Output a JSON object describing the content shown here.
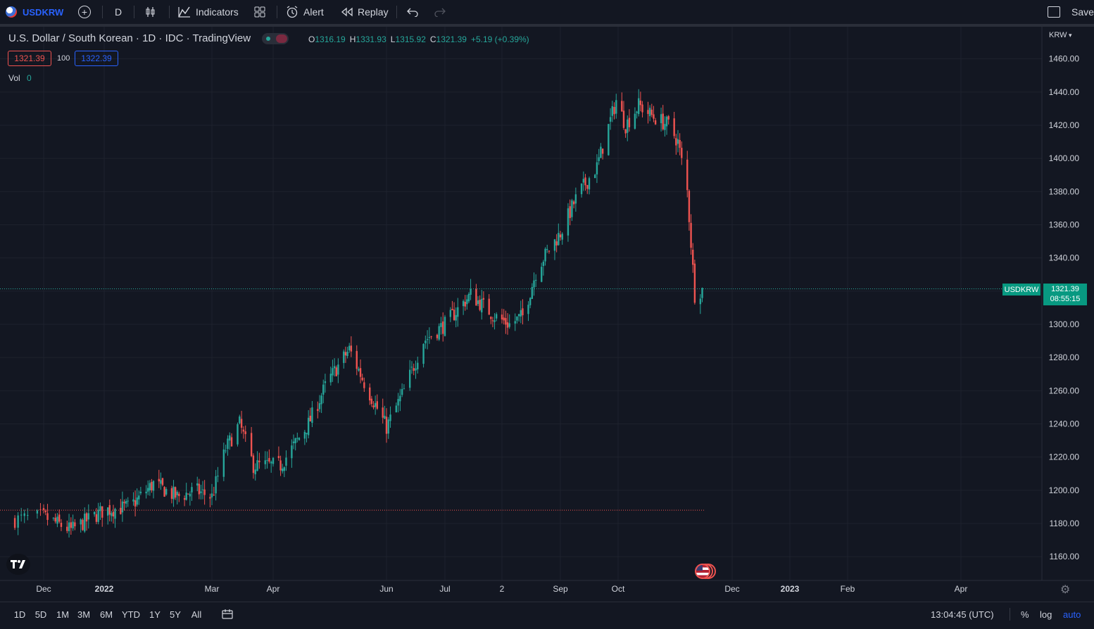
{
  "toolbar": {
    "symbol": "USDKRW",
    "interval": "D",
    "indicators_label": "Indicators",
    "alert_label": "Alert",
    "replay_label": "Replay",
    "save_label": "Save"
  },
  "legend": {
    "title": "U.S. Dollar / South Korean · 1D · IDC · TradingView",
    "open_key": "O",
    "open": "1316.19",
    "high_key": "H",
    "high": "1331.93",
    "low_key": "L",
    "low": "1315.92",
    "close_key": "C",
    "close": "1321.39",
    "change": "+5.19 (+0.39%)",
    "sell_price": "1321.39",
    "spread": "100",
    "buy_price": "1322.39",
    "vol_label": "Vol",
    "vol_value": "0"
  },
  "price_axis": {
    "currency": "KRW",
    "current_symbol": "USDKRW",
    "current_price": "1321.39",
    "countdown": "08:55:15"
  },
  "bottombar": {
    "ranges": [
      "1D",
      "5D",
      "1M",
      "3M",
      "6M",
      "YTD",
      "1Y",
      "5Y",
      "All"
    ],
    "time": "13:04:45 (UTC)",
    "percent_label": "%",
    "log_label": "log",
    "auto_label": "auto"
  },
  "colors": {
    "background": "#131722",
    "up": "#26a69a",
    "down": "#ef5350",
    "grid": "#1e222d",
    "accent": "#2962ff"
  },
  "chart_data": {
    "type": "candlestick",
    "symbol": "USDKRW",
    "ylim": [
      1150,
      1470
    ],
    "y_ticks": [
      "1160.00",
      "1180.00",
      "1200.00",
      "1220.00",
      "1240.00",
      "1260.00",
      "1280.00",
      "1300.00",
      "1320.00",
      "1340.00",
      "1360.00",
      "1380.00",
      "1400.00",
      "1420.00",
      "1440.00",
      "1460.00"
    ],
    "x_ticks": [
      "Dec",
      "2022",
      "Mar",
      "Apr",
      "Jun",
      "Jul",
      "2",
      "Sep",
      "Oct",
      "Dec",
      "2023",
      "Feb",
      "Apr"
    ],
    "series_points": [
      {
        "date": "2021-11-20",
        "price": 1182
      },
      {
        "date": "2021-12-01",
        "price": 1184
      },
      {
        "date": "2021-12-15",
        "price": 1176
      },
      {
        "date": "2022-01-01",
        "price": 1188
      },
      {
        "date": "2022-01-15",
        "price": 1190
      },
      {
        "date": "2022-01-28",
        "price": 1204
      },
      {
        "date": "2022-02-10",
        "price": 1196
      },
      {
        "date": "2022-02-20",
        "price": 1200
      },
      {
        "date": "2022-03-01",
        "price": 1196
      },
      {
        "date": "2022-03-08",
        "price": 1225
      },
      {
        "date": "2022-03-15",
        "price": 1240
      },
      {
        "date": "2022-03-22",
        "price": 1215
      },
      {
        "date": "2022-04-05",
        "price": 1215
      },
      {
        "date": "2022-04-20",
        "price": 1240
      },
      {
        "date": "2022-04-30",
        "price": 1265
      },
      {
        "date": "2022-05-12",
        "price": 1285
      },
      {
        "date": "2022-05-20",
        "price": 1265
      },
      {
        "date": "2022-06-01",
        "price": 1238
      },
      {
        "date": "2022-06-10",
        "price": 1260
      },
      {
        "date": "2022-06-20",
        "price": 1290
      },
      {
        "date": "2022-07-01",
        "price": 1300
      },
      {
        "date": "2022-07-15",
        "price": 1318
      },
      {
        "date": "2022-07-28",
        "price": 1305
      },
      {
        "date": "2022-08-05",
        "price": 1300
      },
      {
        "date": "2022-08-12",
        "price": 1305
      },
      {
        "date": "2022-08-20",
        "price": 1335
      },
      {
        "date": "2022-09-01",
        "price": 1355
      },
      {
        "date": "2022-09-10",
        "price": 1378
      },
      {
        "date": "2022-09-20",
        "price": 1395
      },
      {
        "date": "2022-09-30",
        "price": 1435
      },
      {
        "date": "2022-10-05",
        "price": 1420
      },
      {
        "date": "2022-10-12",
        "price": 1432
      },
      {
        "date": "2022-10-20",
        "price": 1425
      },
      {
        "date": "2022-10-28",
        "price": 1420
      },
      {
        "date": "2022-11-02",
        "price": 1410
      },
      {
        "date": "2022-11-07",
        "price": 1380
      },
      {
        "date": "2022-11-11",
        "price": 1318
      },
      {
        "date": "2022-11-15",
        "price": 1321
      }
    ],
    "last_price": 1321.39,
    "reference_line": 1188
  }
}
